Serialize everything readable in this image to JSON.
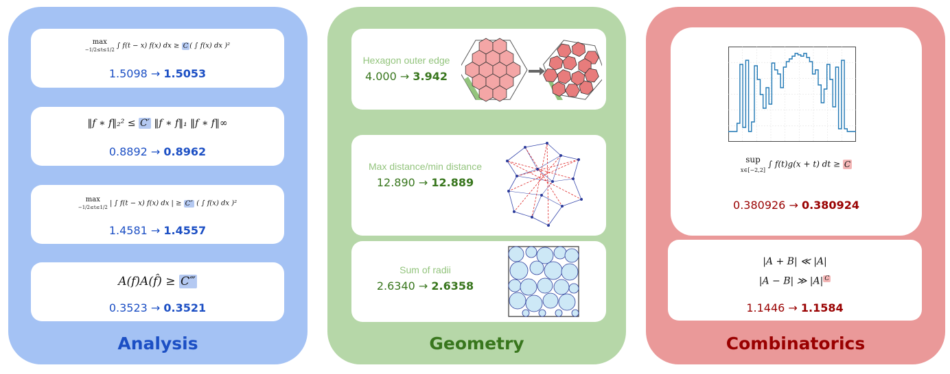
{
  "analysis": {
    "title": "Analysis",
    "cards": [
      {
        "formula_left": "max",
        "formula_sub": "−1/2≤t≤1/2",
        "formula_mid": "∫ f(t − x) f(x) dx ≥",
        "constant": "C",
        "formula_right": "( ∫ f(x) dx )²",
        "old": "1.5098",
        "arrow": "→",
        "new": "1.5053"
      },
      {
        "formula_left": "‖f ∗ f‖₂² ≤",
        "constant": "C′",
        "formula_right": "‖f ∗ f‖₁ ‖f ∗ f‖∞",
        "old": "0.8892",
        "arrow": "→",
        "new": "0.8962"
      },
      {
        "formula_left": "max",
        "formula_sub": "−1/2≤t≤1/2",
        "formula_mid": "| ∫ f(t − x) f(x) dx | ≥",
        "constant": "C″",
        "formula_right": "( ∫ f(x) dx )²",
        "old": "1.4581",
        "arrow": "→",
        "new": "1.4557"
      },
      {
        "formula_left": "A(f)A(f̂) ≥",
        "constant": "C‴",
        "formula_right": "",
        "old": "0.3523",
        "arrow": "→",
        "new": "0.3521"
      }
    ]
  },
  "geometry": {
    "title": "Geometry",
    "cards": [
      {
        "label": "Hexagon outer edge",
        "old": "4.000",
        "arrow": "→",
        "new": "3.942"
      },
      {
        "label": "Max distance/min distance",
        "old": "12.890",
        "arrow": "→",
        "new": "12.889"
      },
      {
        "label": "Sum of radii",
        "old": "2.6340",
        "arrow": "→",
        "new": "2.6358"
      }
    ]
  },
  "combinatorics": {
    "title": "Combinatorics",
    "cards": [
      {
        "formula_left": "sup",
        "formula_sub": "x∈[−2,2]",
        "formula_mid": "∫ f(t)g(x + t) dt ≥",
        "constant": "C",
        "old": "0.380926",
        "arrow": "→",
        "new": "0.380924"
      },
      {
        "line1": "|A + B| ≪ |A|",
        "line2": "|A − B| ≫ |A|",
        "constant": "C",
        "old": "1.1446",
        "arrow": "→",
        "new": "1.1584"
      }
    ]
  },
  "colors": {
    "analysis_bg": "#a4c2f4",
    "geometry_bg": "#b6d7a8",
    "combinatorics_bg": "#ea9999"
  }
}
